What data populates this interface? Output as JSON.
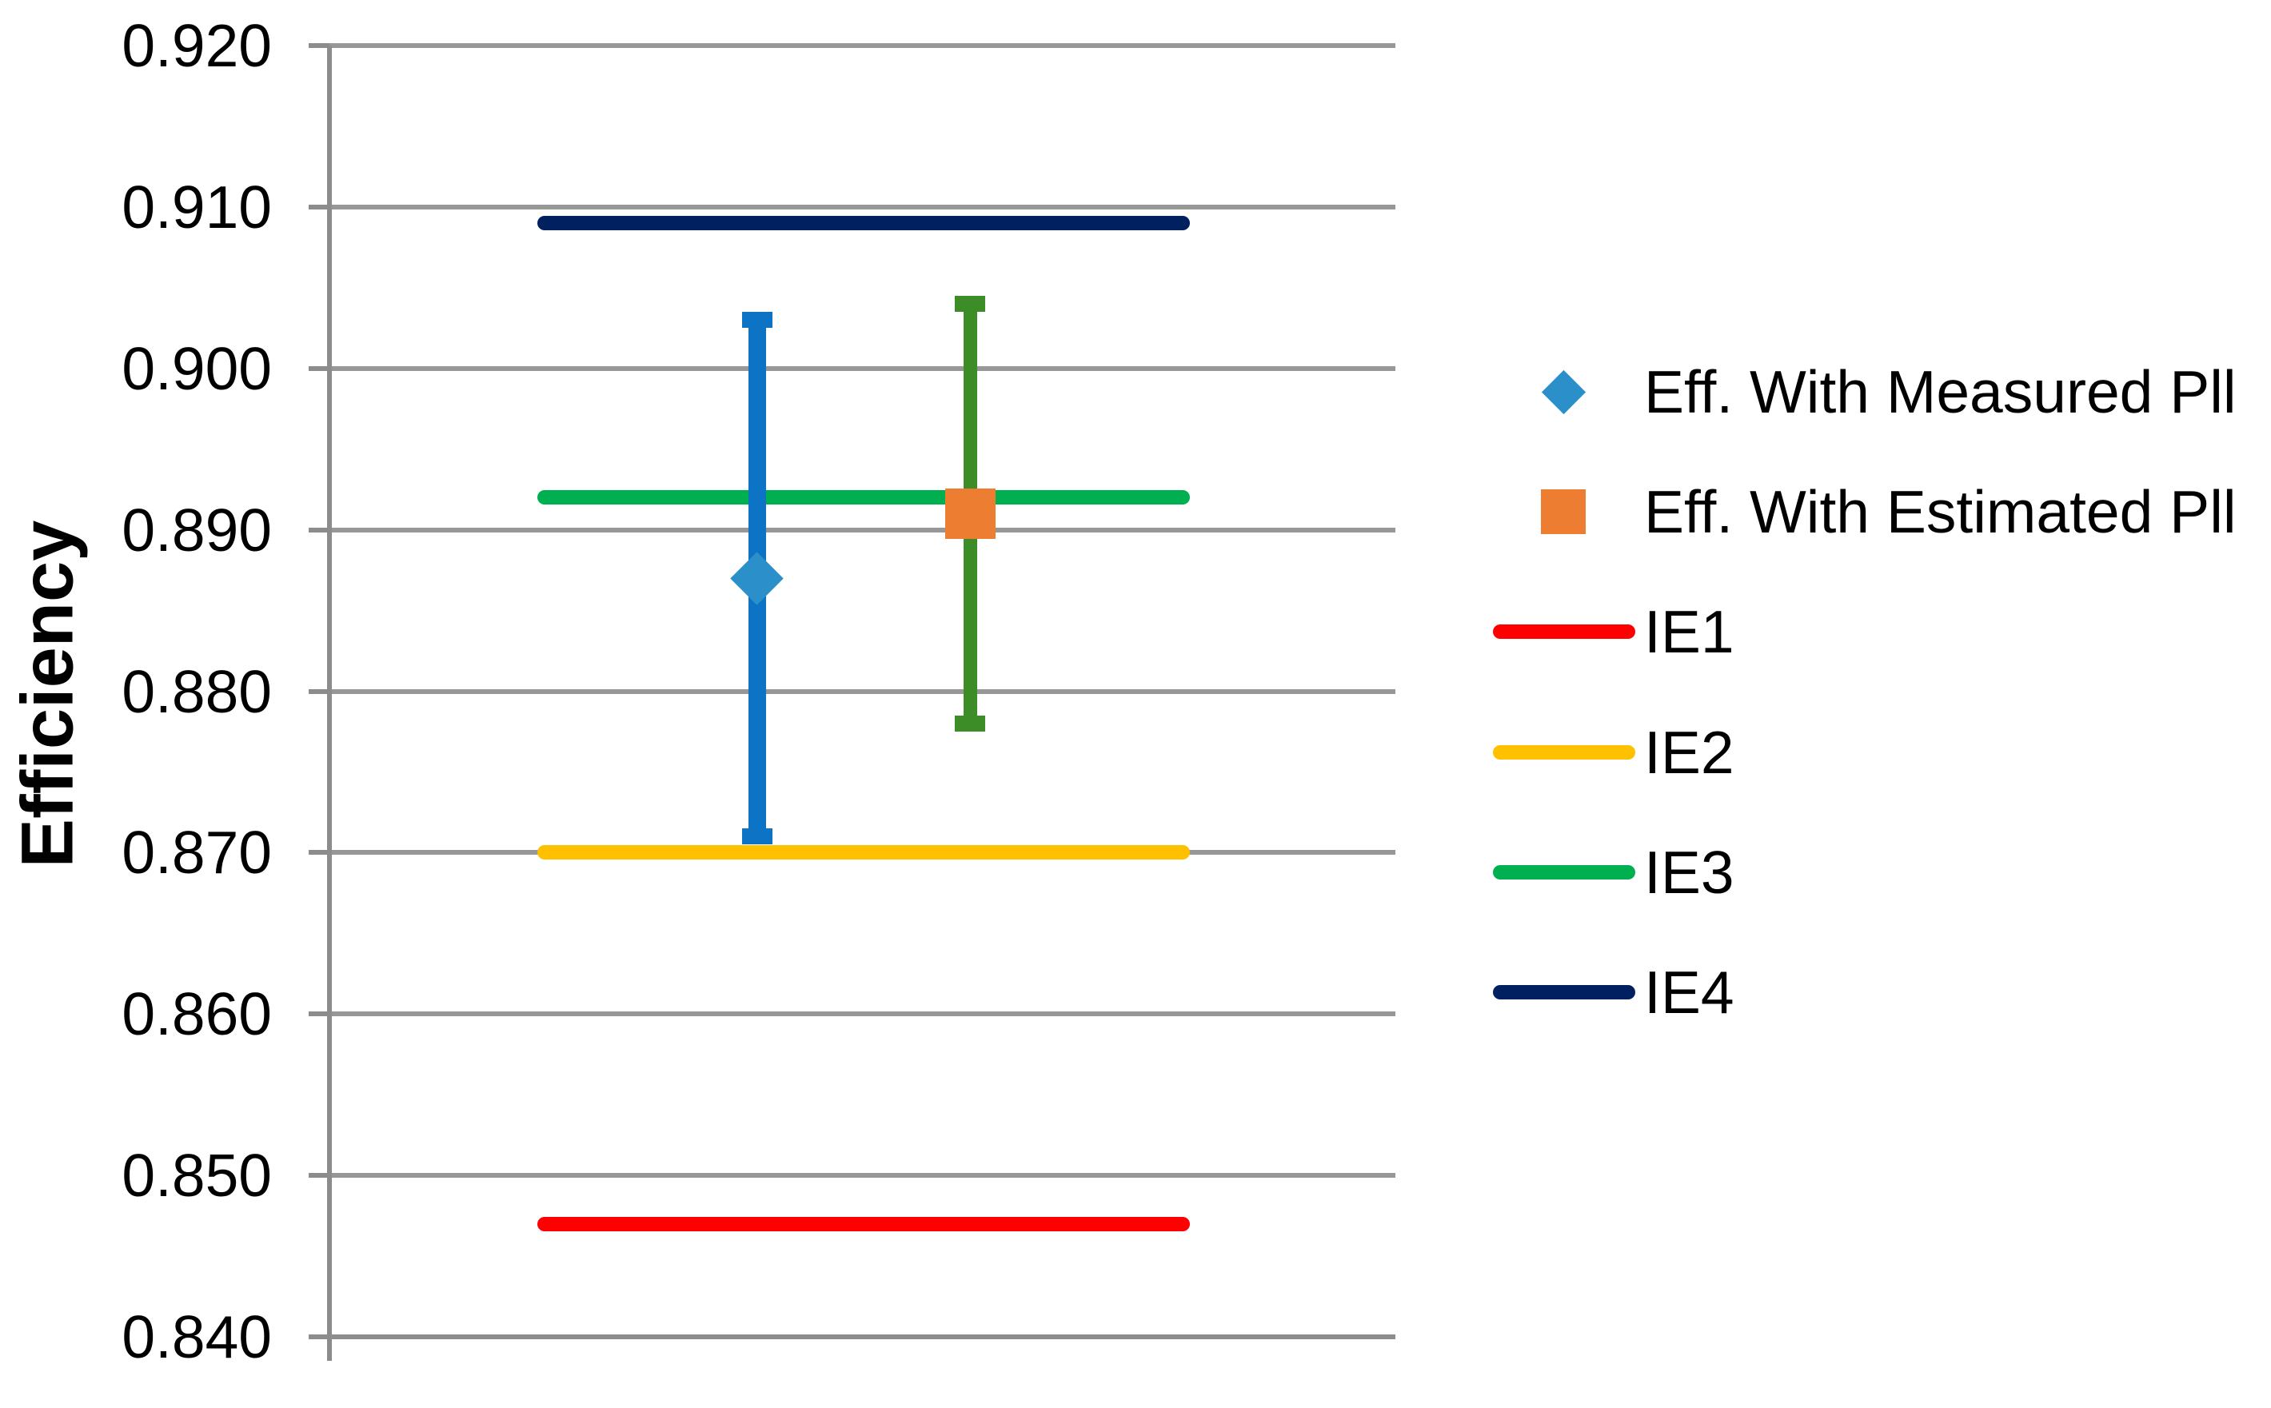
{
  "chart_data": {
    "type": "scatter",
    "title": "",
    "xlabel": "",
    "ylabel": "Efficiency",
    "ylim": [
      0.84,
      0.92
    ],
    "ytick_step": 0.01,
    "ytick_labels": [
      "0.920",
      "0.910",
      "0.900",
      "0.890",
      "0.880",
      "0.870",
      "0.860",
      "0.850",
      "0.840"
    ],
    "grid": true,
    "legend_position": "right",
    "point_series": [
      {
        "name": "Eff. With Measured Pll",
        "marker": "diamond",
        "marker_color": "#2B8FC9",
        "bar_color": "#0D74C5",
        "x_frac": 0.401,
        "value": 0.887,
        "err_low": 0.871,
        "err_high": 0.903
      },
      {
        "name": "Eff. With Estimated Pll",
        "marker": "square",
        "marker_color": "#ED7D31",
        "bar_color": "#3C8D28",
        "x_frac": 0.601,
        "value": 0.891,
        "err_low": 0.878,
        "err_high": 0.904
      }
    ],
    "line_series": [
      {
        "name": "IE1",
        "color": "#FF0000",
        "value": 0.847
      },
      {
        "name": "IE2",
        "color": "#FFC000",
        "value": 0.87
      },
      {
        "name": "IE3",
        "color": "#00B050",
        "value": 0.892
      },
      {
        "name": "IE4",
        "color": "#002060",
        "value": 0.909
      }
    ],
    "legend_entries": [
      {
        "label": "Eff. With Measured Pll",
        "swatch": "diamond",
        "color": "#2B8FC9"
      },
      {
        "label": "Eff. With Estimated Pll",
        "swatch": "square",
        "color": "#ED7D31"
      },
      {
        "label": "IE1",
        "swatch": "line",
        "color": "#FF0000"
      },
      {
        "label": "IE2",
        "swatch": "line",
        "color": "#FFC000"
      },
      {
        "label": "IE3",
        "swatch": "line",
        "color": "#00B050"
      },
      {
        "label": "IE4",
        "swatch": "line",
        "color": "#002060"
      }
    ],
    "colors": {
      "gridline": "#979797",
      "axis": "#8C8C8C",
      "text": "#000000",
      "background": "#FFFFFF"
    }
  }
}
